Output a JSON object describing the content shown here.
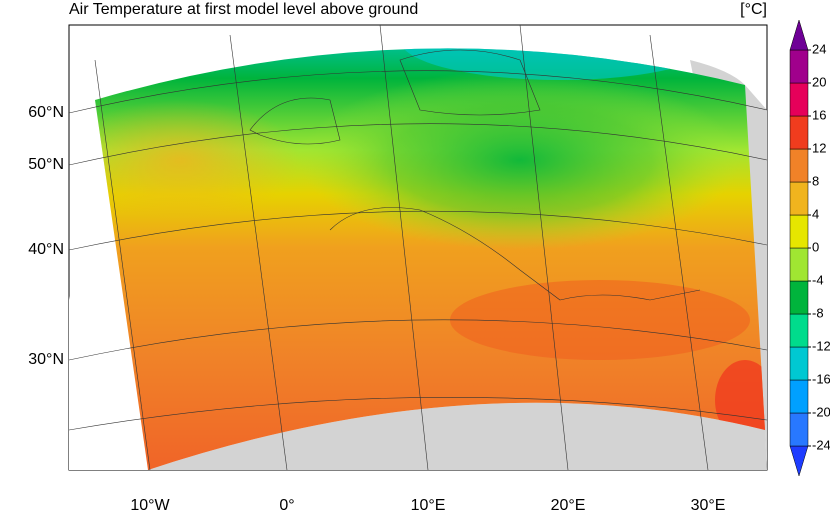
{
  "title": "Air Temperature at first model level above ground",
  "units": "[°C]",
  "map": {
    "lat_labels": [
      "60°N",
      "50°N",
      "40°N",
      "30°N"
    ],
    "lon_labels": [
      "10°W",
      "0°",
      "10°E",
      "20°E",
      "30°E"
    ]
  },
  "colorbar": {
    "levels": [
      -24,
      -20,
      -16,
      -12,
      -8,
      -4,
      0,
      4,
      8,
      12,
      16,
      20,
      24
    ],
    "colors": [
      "#1e3cff",
      "#2878ff",
      "#00a0ff",
      "#00c8d2",
      "#00dc8c",
      "#00b43c",
      "#a0e632",
      "#e6e600",
      "#f0b41e",
      "#f08228",
      "#f03c1e",
      "#e6005a",
      "#a0008c",
      "#6e0096"
    ]
  }
}
